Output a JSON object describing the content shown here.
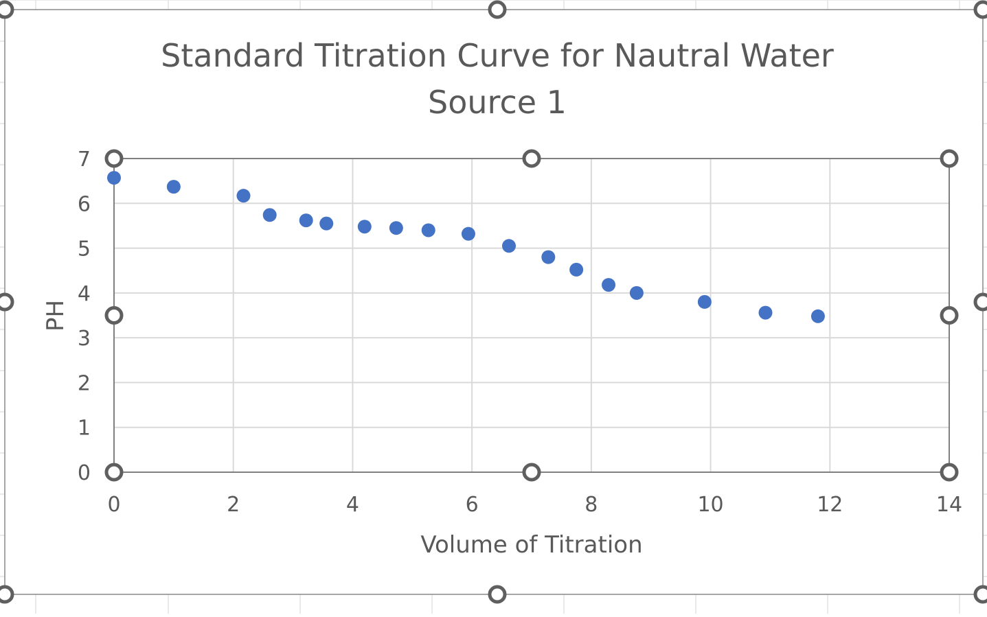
{
  "chart_data": {
    "type": "scatter",
    "title_lines": [
      "Standard Titration Curve for Nautral Water",
      "Source 1"
    ],
    "xlabel": "Volume of Titration",
    "ylabel": "PH",
    "xlim": [
      0,
      14
    ],
    "ylim": [
      0,
      7
    ],
    "xticks": [
      0,
      2,
      4,
      6,
      8,
      10,
      12,
      14
    ],
    "yticks": [
      0,
      1,
      2,
      3,
      4,
      5,
      6,
      7
    ],
    "grid": true,
    "legend": "none",
    "marker_color": "#4472C4",
    "series": [
      {
        "points": [
          {
            "x": 0,
            "y": 6.57
          },
          {
            "x": 1.0,
            "y": 6.37
          },
          {
            "x": 2.17,
            "y": 6.17
          },
          {
            "x": 2.61,
            "y": 5.74
          },
          {
            "x": 3.22,
            "y": 5.62
          },
          {
            "x": 3.56,
            "y": 5.55
          },
          {
            "x": 4.2,
            "y": 5.48
          },
          {
            "x": 4.73,
            "y": 5.45
          },
          {
            "x": 5.27,
            "y": 5.4
          },
          {
            "x": 5.94,
            "y": 5.32
          },
          {
            "x": 6.62,
            "y": 5.05
          },
          {
            "x": 7.28,
            "y": 4.8
          },
          {
            "x": 7.75,
            "y": 4.52
          },
          {
            "x": 8.29,
            "y": 4.18
          },
          {
            "x": 8.76,
            "y": 4.0
          },
          {
            "x": 9.9,
            "y": 3.8
          },
          {
            "x": 10.92,
            "y": 3.56
          },
          {
            "x": 11.8,
            "y": 3.48
          }
        ]
      }
    ]
  }
}
